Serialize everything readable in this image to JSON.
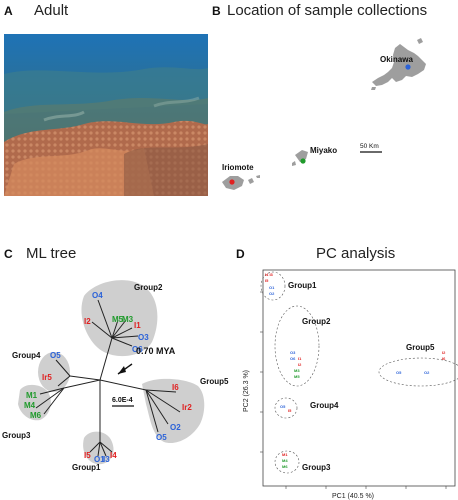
{
  "panels": {
    "a": {
      "letter": "A",
      "title": "Adult"
    },
    "b": {
      "letter": "B",
      "title": "Location of sample collections",
      "places": {
        "okinawa": "Okinawa",
        "miyako": "Miyako",
        "iriomote": "Iriomote"
      },
      "scale": "50 Km"
    },
    "c": {
      "letter": "C",
      "title": "ML tree",
      "groups": {
        "g1": "Group1",
        "g2": "Group2",
        "g3": "Group3",
        "g4": "Group4",
        "g5": "Group5"
      },
      "age": "0.70 MYA",
      "scale": "6.0E-4",
      "leaves": {
        "g2": [
          "O4",
          "I2",
          "M5",
          "M3",
          "I1",
          "O3",
          "O6"
        ],
        "g4": [
          "O5",
          "Ir5"
        ],
        "g3": [
          "M1",
          "M4",
          "M6"
        ],
        "g1": [
          "I5",
          "O1",
          "I3",
          "I4"
        ],
        "g5": [
          "I6",
          "Ir2",
          "O2",
          "O5"
        ]
      }
    },
    "d": {
      "letter": "D",
      "title": "PC analysis",
      "groups": {
        "g1": "Group1",
        "g2": "Group2",
        "g3": "Group3",
        "g4": "Group4",
        "g5": "Group5"
      },
      "xlabel": "PC1 (40.5 %)",
      "ylabel": "PC2 (26.3 %)"
    }
  },
  "colors": {
    "okinawa": "#2b62d8",
    "miyako": "#1f9a2b",
    "iriomote": "#e02020",
    "ellipse_fill": "#c9c9c9"
  }
}
